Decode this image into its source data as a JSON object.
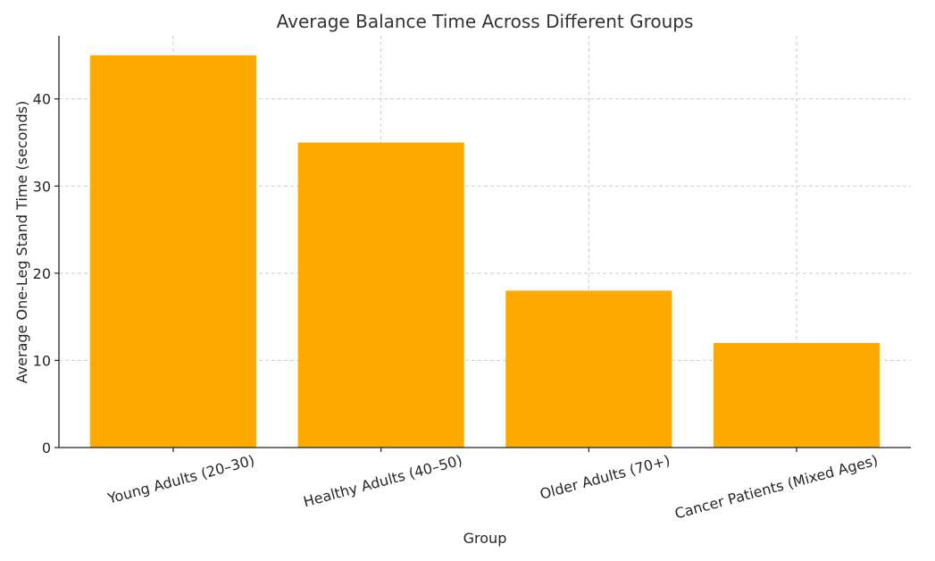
{
  "chart_data": {
    "type": "bar",
    "title": "Average Balance Time Across Different Groups",
    "xlabel": "Group",
    "ylabel": "Average One-Leg Stand Time (seconds)",
    "categories": [
      "Young Adults (20–30)",
      "Healthy Adults (40–50)",
      "Older Adults (70+)",
      "Cancer Patients (Mixed Ages)"
    ],
    "values": [
      45,
      35,
      18,
      12
    ],
    "ylim": [
      0,
      47.25
    ],
    "yticks": [
      0,
      10,
      20,
      30,
      40
    ],
    "grid": true,
    "bar_color": "#FFAA00"
  }
}
